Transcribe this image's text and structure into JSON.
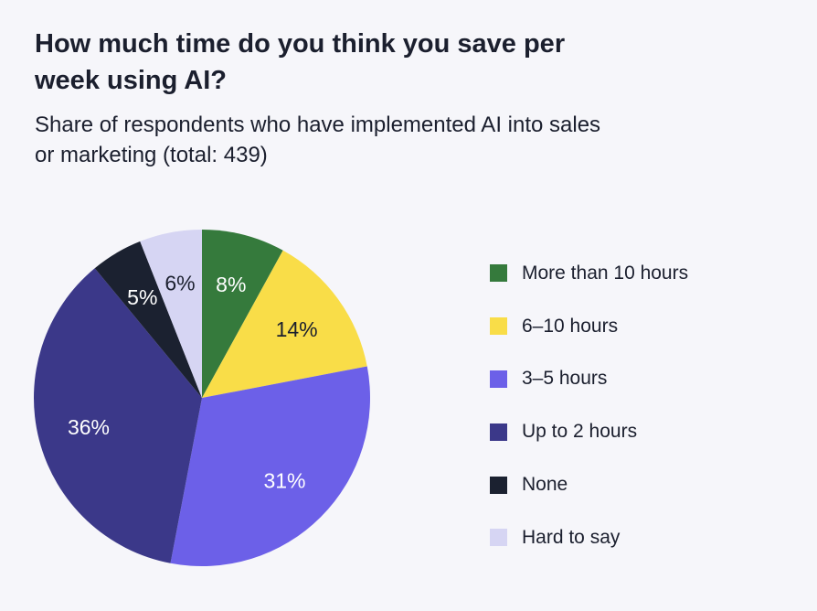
{
  "chart_data": {
    "type": "pie",
    "title": "How much time do you think you save per week using AI?",
    "subtitle": "Share of respondents who have implemented AI into sales or marketing (total: 439)",
    "categories": [
      "More than 10 hours",
      "6–10 hours",
      "3–5 hours",
      "Up to 2 hours",
      "None",
      "Hard to say"
    ],
    "values": [
      8,
      14,
      31,
      36,
      5,
      6
    ],
    "labels": [
      "8%",
      "14%",
      "31%",
      "36%",
      "5%",
      "6%"
    ],
    "colors": [
      "#357a3c",
      "#f9dd48",
      "#6c60e8",
      "#3b3889",
      "#1b2130",
      "#d6d5f3"
    ],
    "label_colors": [
      "#ffffff",
      "#1b1f2e",
      "#ffffff",
      "#ffffff",
      "#ffffff",
      "#1b1f2e"
    ],
    "start_angle": "12 o'clock",
    "direction": "clockwise",
    "legend_position": "right"
  },
  "legend": {
    "items": [
      {
        "label": "More than 10 hours",
        "color": "#357a3c"
      },
      {
        "label": "6–10 hours",
        "color": "#f9dd48"
      },
      {
        "label": "3–5 hours",
        "color": "#6c60e8"
      },
      {
        "label": "Up to 2 hours",
        "color": "#3b3889"
      },
      {
        "label": "None",
        "color": "#1b2130"
      },
      {
        "label": "Hard to say",
        "color": "#d6d5f3"
      }
    ]
  }
}
